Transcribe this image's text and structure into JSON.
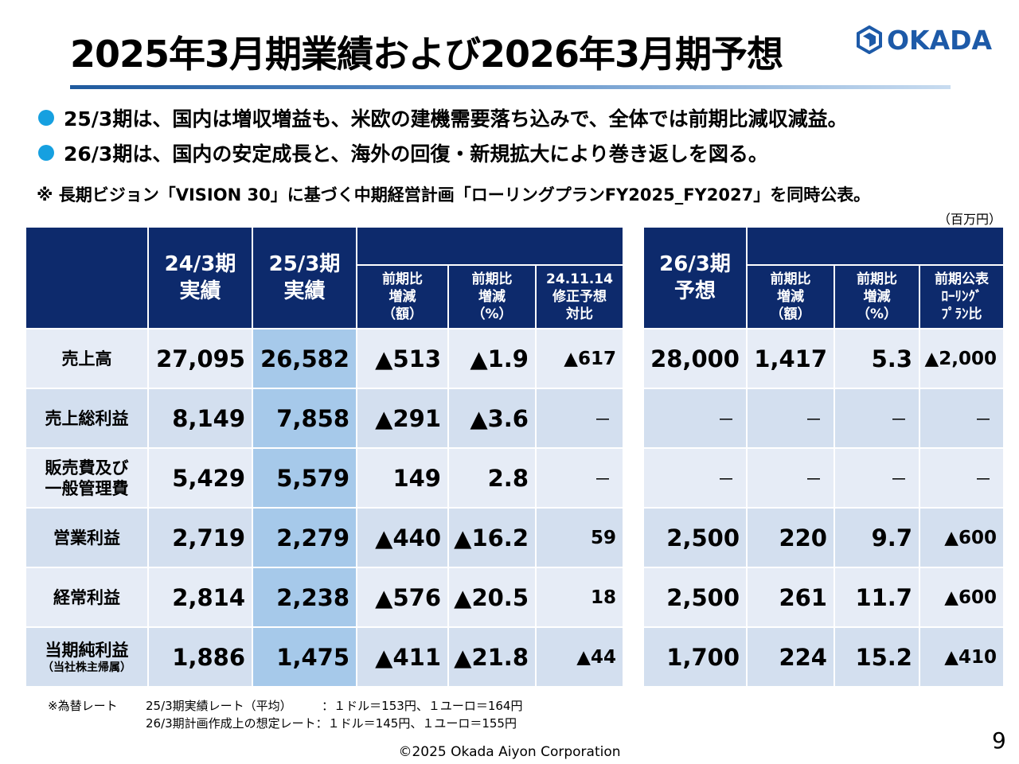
{
  "title": "2025年3月期業績および2026年3月期予想",
  "logo": {
    "text": "OKADA",
    "icon": "okada-hexagon-logo-icon",
    "color": "#1d5aa8"
  },
  "bullets": [
    "25/3期は、国内は増収増益も、米欧の建機需要落ち込みで、全体では前期比減収減益。",
    "26/3期は、国内の安定成長と、海外の回復・新規拡大により巻き返しを図る。"
  ],
  "bullet_color": "#16a0e0",
  "note": "※ 長期ビジョン「VISION 30」に基づく中期経営計画「ローリングプランFY2025_FY2027」を同時公表。",
  "unit": "（百万円）",
  "left_table": {
    "headers": {
      "h24_line1": "24/3期",
      "h24_line2": "実績",
      "h25_line1": "25/3期",
      "h25_line2": "実績",
      "c1_line1": "前期比",
      "c1_line2": "増減",
      "c1_line3": "（額）",
      "c2_line1": "前期比",
      "c2_line2": "増減",
      "c2_line3": "（%）",
      "c3_line1": "24.11.14",
      "c3_line2": "修正予想",
      "c3_line3": "対比"
    },
    "rows": [
      {
        "label": "売上高",
        "sublabel": "",
        "v24": "27,095",
        "v25": "26,582",
        "diff": "▲513",
        "pct": "▲1.9",
        "vs": "▲617"
      },
      {
        "label": "売上総利益",
        "sublabel": "",
        "v24": "8,149",
        "v25": "7,858",
        "diff": "▲291",
        "pct": "▲3.6",
        "vs": "－"
      },
      {
        "label": "販売費及び",
        "sublabel": "一般管理費",
        "v24": "5,429",
        "v25": "5,579",
        "diff": "149",
        "pct": "2.8",
        "vs": "－"
      },
      {
        "label": "営業利益",
        "sublabel": "",
        "v24": "2,719",
        "v25": "2,279",
        "diff": "▲440",
        "pct": "▲16.2",
        "vs": "59"
      },
      {
        "label": "経常利益",
        "sublabel": "",
        "v24": "2,814",
        "v25": "2,238",
        "diff": "▲576",
        "pct": "▲20.5",
        "vs": "18"
      },
      {
        "label": "当期純利益",
        "sublabel": "（当社株主帰属）",
        "v24": "1,886",
        "v25": "1,475",
        "diff": "▲411",
        "pct": "▲21.8",
        "vs": "▲44"
      }
    ]
  },
  "right_table": {
    "headers": {
      "h26_line1": "26/3期",
      "h26_line2": "予想",
      "c1_line1": "前期比",
      "c1_line2": "増減",
      "c1_line3": "（額）",
      "c2_line1": "前期比",
      "c2_line2": "増減",
      "c2_line3": "（%）",
      "c3_line1": "前期公表",
      "c3_line2": "ﾛｰﾘﾝｸﾞ",
      "c3_line3": "ﾌﾟﾗﾝ比"
    },
    "rows": [
      {
        "v26": "28,000",
        "diff": "1,417",
        "pct": "5.3",
        "vs": "▲2,000"
      },
      {
        "v26": "－",
        "diff": "－",
        "pct": "－",
        "vs": "－"
      },
      {
        "v26": "－",
        "diff": "－",
        "pct": "－",
        "vs": "－"
      },
      {
        "v26": "2,500",
        "diff": "220",
        "pct": "9.7",
        "vs": "▲600"
      },
      {
        "v26": "2,500",
        "diff": "261",
        "pct": "11.7",
        "vs": "▲600"
      },
      {
        "v26": "1,700",
        "diff": "224",
        "pct": "15.2",
        "vs": "▲410"
      }
    ]
  },
  "footnotes": {
    "prefix": "※為替レート",
    "line1": "25/3期実績レート（平均）　　　：１ドル＝153円、１ユーロ＝164円",
    "line2": "26/3期計画作成上の想定レート：１ドル＝145円、１ユーロ＝155円"
  },
  "copyright": "©2025 Okada Aiyon Corporation",
  "page_number": "9"
}
